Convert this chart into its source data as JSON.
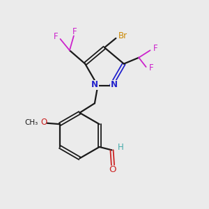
{
  "background_color": "#ebebeb",
  "bond_color": "#1a1a1a",
  "nitrogen_color": "#2222cc",
  "oxygen_color": "#cc2222",
  "fluorine_color": "#cc22cc",
  "bromine_color": "#cc8800",
  "h_color": "#44aaaa",
  "figsize": [
    3.0,
    3.0
  ],
  "dpi": 100,
  "xlim": [
    0,
    10
  ],
  "ylim": [
    0,
    10
  ]
}
